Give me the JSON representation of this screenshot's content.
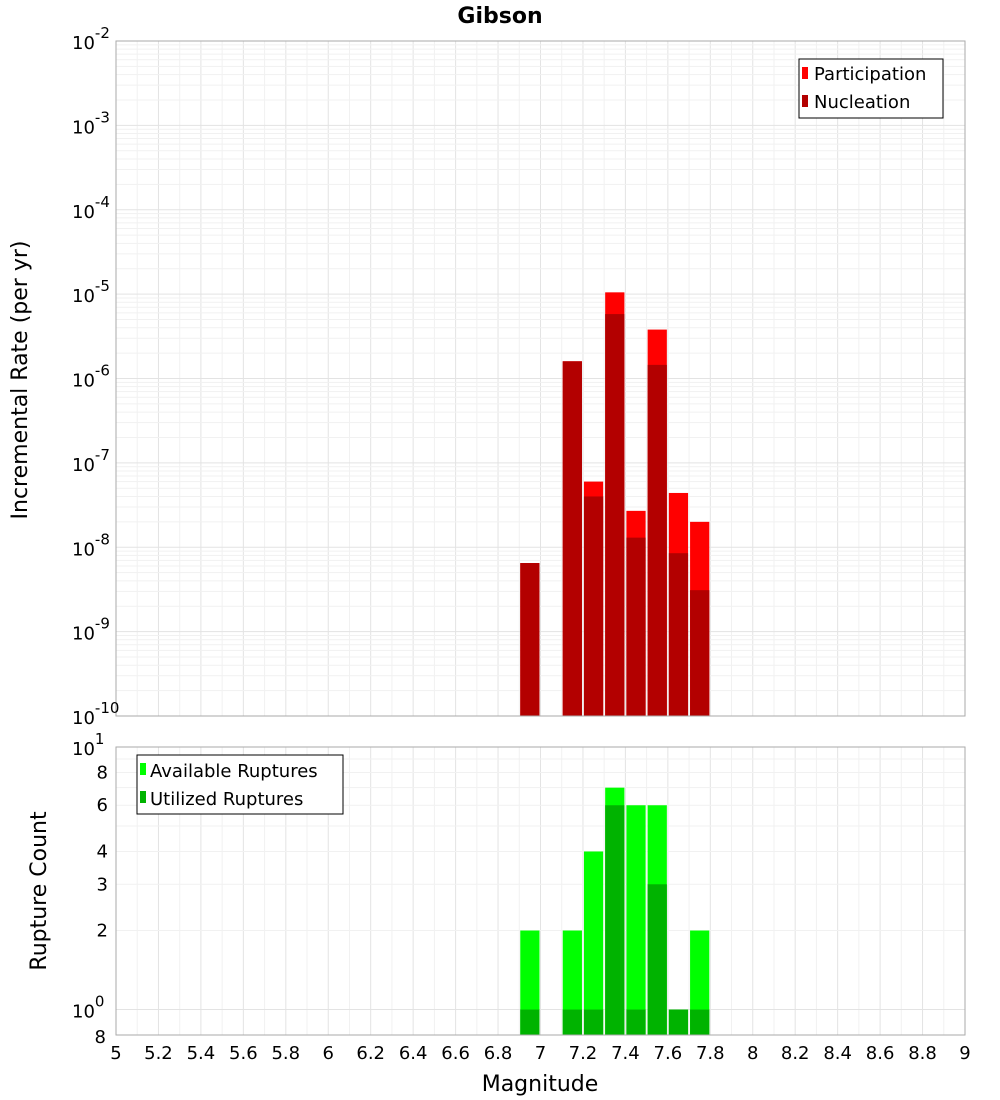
{
  "chart_data": [
    {
      "type": "bar",
      "title": "Gibson",
      "ylabel": "Incremental Rate (per yr)",
      "yscale": "log",
      "ylim": [
        1e-10,
        0.01
      ],
      "xlim": [
        5,
        9
      ],
      "y_tick_bases": [
        "10",
        "10",
        "10",
        "10",
        "10",
        "10",
        "10",
        "10",
        "10"
      ],
      "y_tick_exps": [
        "-10",
        "-9",
        "-8",
        "-7",
        "-6",
        "-5",
        "-4",
        "-3",
        "-2"
      ],
      "y_tick_values": [
        1e-10,
        1e-09,
        1e-08,
        1e-07,
        1e-06,
        1e-05,
        0.0001,
        0.001,
        0.01
      ],
      "legend_position": "top-right",
      "x": [
        6.95,
        7.15,
        7.25,
        7.35,
        7.45,
        7.55,
        7.65,
        7.75
      ],
      "series": [
        {
          "name": "Participation",
          "color": "#ff0000",
          "values": [
            6.5e-09,
            1.6e-06,
            6e-08,
            1.05e-05,
            2.7e-08,
            3.8e-06,
            4.4e-08,
            2e-08
          ]
        },
        {
          "name": "Nucleation",
          "color": "#b30000",
          "values": [
            6.5e-09,
            1.6e-06,
            4e-08,
            5.8e-06,
            1.3e-08,
            1.45e-06,
            8.5e-09,
            3.1e-09
          ]
        }
      ]
    },
    {
      "type": "bar",
      "ylabel": "Rupture Count",
      "xlabel": "Magnitude",
      "yscale": "log",
      "ylim": [
        0.8,
        10
      ],
      "xlim": [
        5,
        9
      ],
      "x_ticks": [
        "5",
        "5.2",
        "5.4",
        "5.6",
        "5.8",
        "6",
        "6.2",
        "6.4",
        "6.6",
        "6.8",
        "7",
        "7.2",
        "7.4",
        "7.6",
        "7.8",
        "8",
        "8.2",
        "8.4",
        "8.6",
        "8.8",
        "9"
      ],
      "y_ticks_major": [
        {
          "value": 1,
          "base": "10",
          "exp": "0"
        },
        {
          "value": 10,
          "base": "10",
          "exp": "1"
        }
      ],
      "y_ticks_minor": [
        {
          "value": 2,
          "label": "2"
        },
        {
          "value": 3,
          "label": "3"
        },
        {
          "value": 4,
          "label": "4"
        },
        {
          "value": 6,
          "label": "6"
        },
        {
          "value": 8,
          "label": "8"
        }
      ],
      "y_bottom_label": "8",
      "legend_position": "top-left",
      "x": [
        6.95,
        7.15,
        7.25,
        7.35,
        7.45,
        7.55,
        7.65,
        7.75
      ],
      "series": [
        {
          "name": "Available Ruptures",
          "color": "#00ff00",
          "values": [
            2,
            2,
            4,
            7,
            6,
            6,
            1,
            2
          ]
        },
        {
          "name": "Utilized Ruptures",
          "color": "#00b300",
          "values": [
            1,
            1,
            1,
            6,
            1,
            3,
            1,
            1
          ]
        }
      ]
    }
  ]
}
